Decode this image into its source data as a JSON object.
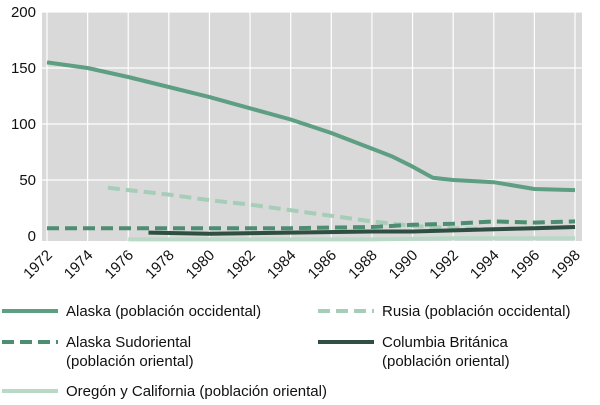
{
  "chart_data": {
    "type": "line",
    "title": "",
    "xlabel": "",
    "ylabel": "",
    "xlim": [
      1972,
      1999
    ],
    "ylim": [
      0,
      200
    ],
    "x_ticks": [
      1972,
      1974,
      1976,
      1978,
      1980,
      1982,
      1984,
      1986,
      1988,
      1990,
      1992,
      1994,
      1996,
      1998
    ],
    "x_tick_labels": [
      "1972",
      "1974",
      "1976",
      "1978",
      "1980",
      "1982",
      "1984",
      "1986",
      "1988",
      "1990",
      "1992",
      "1994",
      "1996",
      "1998"
    ],
    "y_ticks": [
      0,
      50,
      100,
      150,
      200
    ],
    "y_tick_labels": [
      "0",
      "50",
      "100",
      "150",
      "200"
    ],
    "grid": true,
    "background": "#d9d9d9",
    "legend_position": "bottom",
    "series": [
      {
        "name": "Alaska (población occidental)",
        "color": "#5e9e82",
        "dash": "solid",
        "x": [
          1972,
          1974,
          1976,
          1978,
          1980,
          1982,
          1984,
          1986,
          1988,
          1989,
          1990,
          1991,
          1992,
          1994,
          1996,
          1998
        ],
        "y": [
          155,
          150,
          142,
          133,
          124,
          114,
          104,
          92,
          78,
          71,
          62,
          52,
          50,
          48,
          42,
          41
        ]
      },
      {
        "name": "Rusia (población occidental)",
        "color": "#a6cdb8",
        "dash": "dashed",
        "x": [
          1975,
          1978,
          1980,
          1982,
          1984,
          1986,
          1988,
          1990,
          1992,
          1994,
          1996,
          1998
        ],
        "y": [
          43,
          37,
          32,
          28,
          23,
          18,
          13,
          9,
          7,
          6,
          7,
          8
        ]
      },
      {
        "name": "Alaska Sudoriental\n(población oriental)",
        "color": "#4d8d72",
        "dash": "dashed",
        "x": [
          1972,
          1976,
          1980,
          1984,
          1988,
          1990,
          1992,
          1994,
          1996,
          1998
        ],
        "y": [
          7,
          7,
          7,
          7,
          8,
          10,
          11,
          13,
          12,
          13
        ]
      },
      {
        "name": "Columbia Británica\n(población oriental)",
        "color": "#2e4f41",
        "dash": "solid",
        "x": [
          1977,
          1980,
          1984,
          1988,
          1990,
          1992,
          1994,
          1996,
          1998
        ],
        "y": [
          3,
          2,
          3,
          4,
          4,
          5,
          6,
          7,
          8
        ]
      },
      {
        "name": "Oregón y California (población oriental)",
        "color": "#b9d9c6",
        "dash": "solid",
        "x": [
          1976,
          1980,
          1984,
          1988,
          1992,
          1996,
          1998
        ],
        "y": [
          -3,
          -3,
          -3,
          -3,
          -2,
          -2,
          -2
        ]
      }
    ]
  }
}
